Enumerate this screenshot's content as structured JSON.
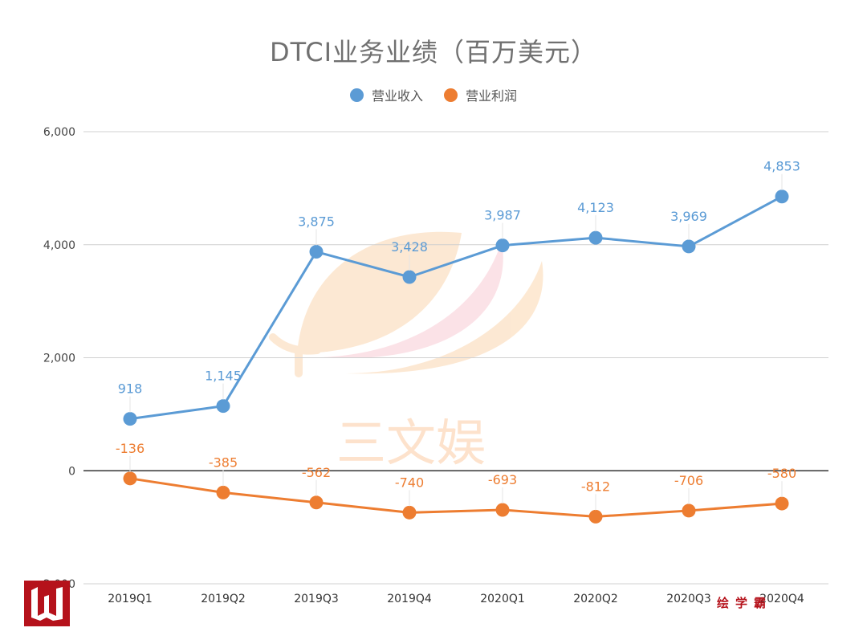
{
  "chart_data": {
    "type": "line",
    "title": "DTCI业务业绩（百万美元）",
    "xlabel": "",
    "ylabel": "",
    "categories": [
      "2019Q1",
      "2019Q2",
      "2019Q3",
      "2019Q4",
      "2020Q1",
      "2020Q2",
      "2020Q3",
      "2020Q4"
    ],
    "series": [
      {
        "name": "营业收入",
        "color": "#5b9bd5",
        "values": [
          918,
          1145,
          3875,
          3428,
          3987,
          4123,
          3969,
          4853
        ],
        "labels": [
          "918",
          "1,145",
          "3,875",
          "3,428",
          "3,987",
          "4,123",
          "3,969",
          "4,853"
        ]
      },
      {
        "name": "营业利润",
        "color": "#ed7d31",
        "values": [
          -136,
          -385,
          -562,
          -740,
          -693,
          -812,
          -706,
          -580
        ],
        "labels": [
          "-136",
          "-385",
          "-562",
          "-740",
          "-693",
          "-812",
          "-706",
          "-580"
        ]
      }
    ],
    "ylim": [
      -2000,
      6000
    ],
    "yticks": [
      -2000,
      0,
      2000,
      4000,
      6000
    ],
    "ytick_labels": [
      "-2,000",
      "0",
      "2,000",
      "4,000",
      "6,000"
    ],
    "grid": true,
    "legend_position": "top-center"
  },
  "watermark": {
    "brand_text": "三文娱",
    "footer_text": "绘学霸"
  }
}
